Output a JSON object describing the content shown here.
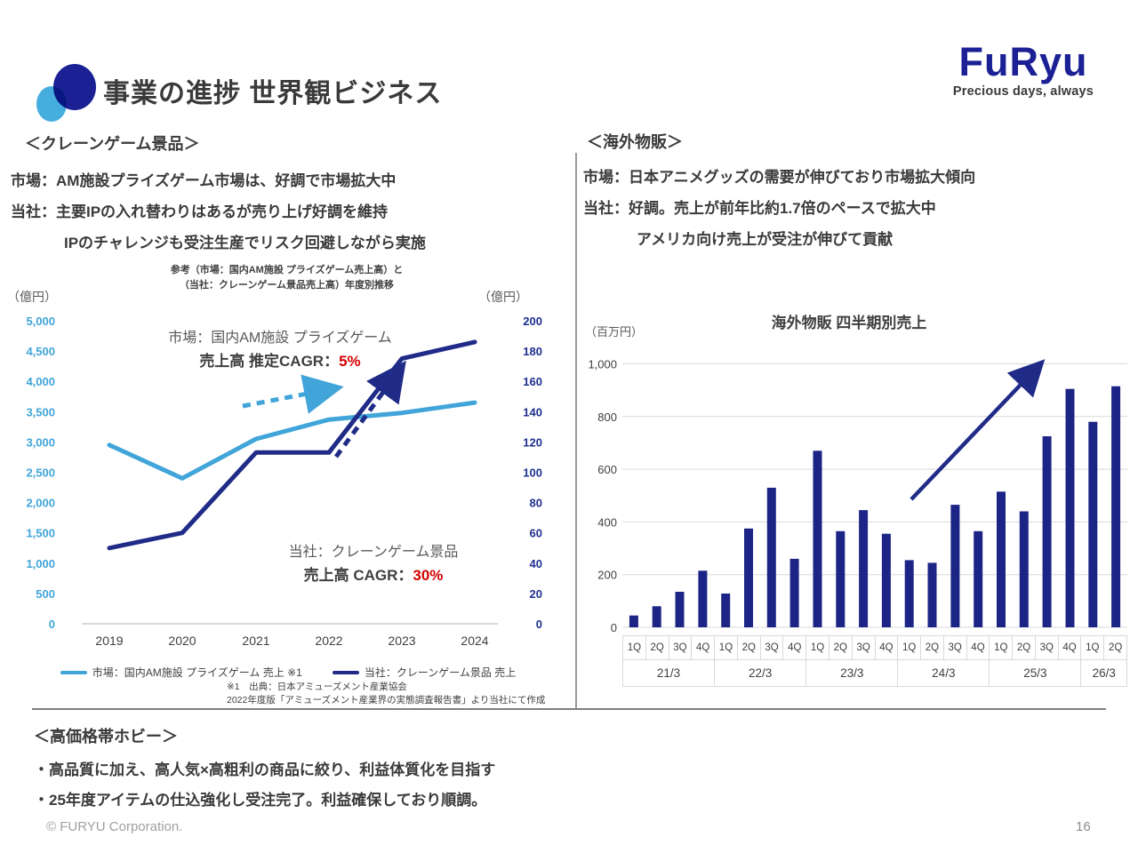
{
  "header": {
    "title": "事業の進捗 世界観ビジネス",
    "logo_text": "FuRyu",
    "logo_tagline": "Precious days, always"
  },
  "crane_section": {
    "heading": "＜クレーンゲーム景品＞",
    "line1": "市場：AM施設プライズゲーム市場は、好調で市場拡大中",
    "line2": "当社：主要IPの入れ替わりはあるが売り上げ好調を維持",
    "line3": "IPのチャレンジも受注生産でリスク回避しながら実施"
  },
  "overseas_section": {
    "heading": "＜海外物販＞",
    "line1": "市場：日本アニメグッズの需要が伸びており市場拡大傾向",
    "line2": "当社：好調。売上が前年比約1.7倍のペースで拡大中",
    "line3": "アメリカ向け売上が受注が伸びて貢献"
  },
  "hobby_section": {
    "heading": "＜高価格帯ホビー＞",
    "bullet1": "・高品質に加え、高人気×高粗利の商品に絞り、利益体質化を目指す",
    "bullet2": "・25年度アイテムの仕込強化し受注完了。利益確保しており順調。"
  },
  "footer": {
    "copyright": "© FURYU Corporation.",
    "page_number": "16"
  },
  "chart_data": [
    {
      "type": "line",
      "title_line1": "参考（市場：国内AM施設 プライズゲーム売上高）と",
      "title_line2": "（当社：クレーンゲーム景品売上高）年度別推移",
      "left_axis": {
        "label": "（億円）",
        "min": 0,
        "max": 5000,
        "step": 500,
        "color": "#41a5d9"
      },
      "right_axis": {
        "label": "（億円）",
        "min": 0,
        "max": 200,
        "step": 20,
        "color": "#1e2f8f"
      },
      "categories": [
        "2019",
        "2020",
        "2021",
        "2022",
        "2023",
        "2024"
      ],
      "series": [
        {
          "name": "市場：国内AM施設 プライズゲーム 売上 ※1",
          "axis": "left",
          "color": "#41a5d9",
          "values": [
            2950,
            2400,
            3050,
            3370,
            3480,
            3650
          ]
        },
        {
          "name": "当社：クレーンゲーム景品 売上",
          "axis": "right",
          "color": "#1f2b87",
          "values": [
            50,
            60,
            113,
            113,
            175,
            186
          ]
        }
      ],
      "annotations": {
        "market": {
          "line1": "市場：国内AM施設 プライズゲーム",
          "line2_prefix": "売上高 推定CAGR：",
          "line2_value": "5%"
        },
        "company": {
          "line1": "当社：クレーンゲーム景品",
          "line2_prefix": "売上高 CAGR：",
          "line2_value": "30%"
        }
      },
      "footnote_line1": "※1　出典：日本アミューズメント産業協会",
      "footnote_line2": "2022年度版「アミューズメント産業界の実態調査報告書」より当社にて作成",
      "legend_position": "bottom",
      "grid": false
    },
    {
      "type": "bar",
      "title": "海外物販 四半期別売上",
      "unit_label": "（百万円）",
      "bar_color": "#1c2586",
      "ylim": [
        0,
        1000
      ],
      "ytick_step": 200,
      "ytick_labels": [
        "1,000",
        "800",
        "600",
        "400",
        "200",
        "0"
      ],
      "grid": true,
      "groups": [
        {
          "label": "21/3",
          "quarters": [
            "1Q",
            "2Q",
            "3Q",
            "4Q"
          ],
          "values": [
            45,
            80,
            135,
            215
          ]
        },
        {
          "label": "22/3",
          "quarters": [
            "1Q",
            "2Q",
            "3Q",
            "4Q"
          ],
          "values": [
            128,
            375,
            530,
            260
          ]
        },
        {
          "label": "23/3",
          "quarters": [
            "1Q",
            "2Q",
            "3Q",
            "4Q"
          ],
          "values": [
            670,
            365,
            445,
            355
          ]
        },
        {
          "label": "24/3",
          "quarters": [
            "1Q",
            "2Q",
            "3Q",
            "4Q"
          ],
          "values": [
            255,
            245,
            465,
            365
          ]
        },
        {
          "label": "25/3",
          "quarters": [
            "1Q",
            "2Q",
            "3Q",
            "4Q"
          ],
          "values": [
            515,
            440,
            725,
            905
          ]
        },
        {
          "label": "26/3",
          "quarters": [
            "1Q",
            "2Q"
          ],
          "values": [
            780,
            915
          ]
        }
      ]
    }
  ]
}
